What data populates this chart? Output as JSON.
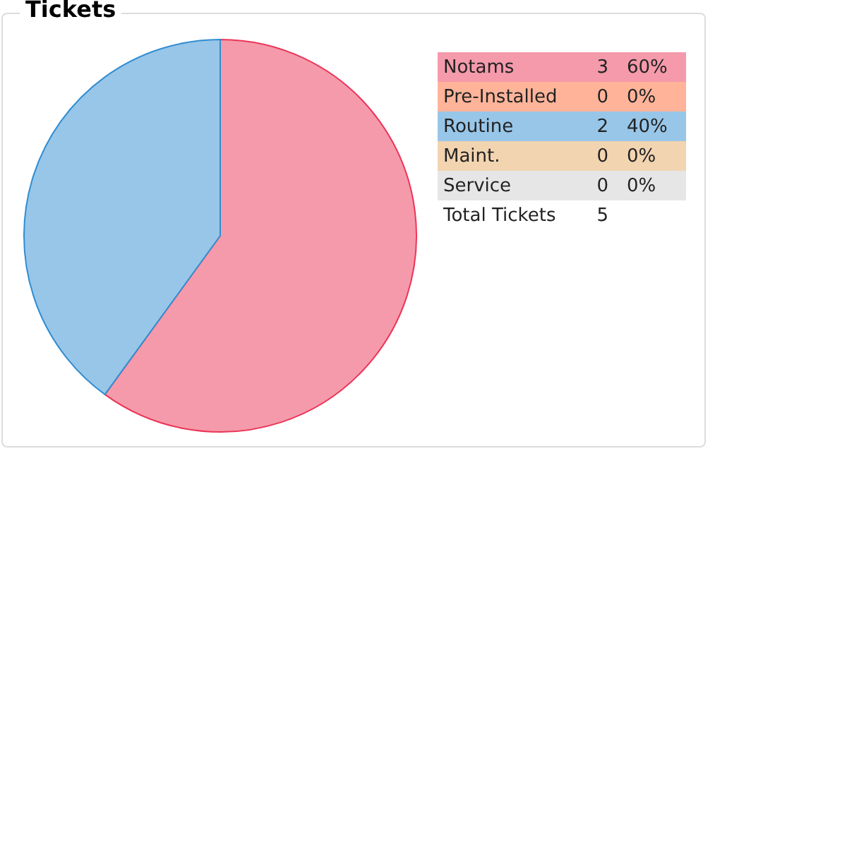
{
  "chart_data": {
    "type": "pie",
    "title": "Tickets",
    "categories": [
      "Notams",
      "Pre-Installed",
      "Routine",
      "Maint.",
      "Service"
    ],
    "values": [
      3,
      0,
      2,
      0,
      0
    ],
    "colors": [
      "#f59aab",
      "#ffb49a",
      "#98c6e8",
      "#f2d4b0",
      "#e6e6e6"
    ],
    "value_labels": [
      "3",
      "0",
      "2",
      "0",
      "0"
    ],
    "legend": "right",
    "annotations": [
      "60%",
      "0%",
      "40%",
      "0%",
      "0%",
      "Total Tickets",
      "5"
    ]
  }
}
